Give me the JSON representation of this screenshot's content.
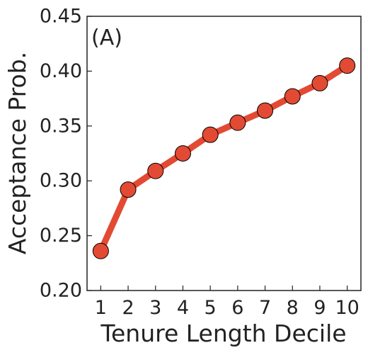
{
  "chart_data": {
    "type": "line",
    "panel_label": "(A)",
    "xlabel": "Tenure Length Decile",
    "ylabel": "Acceptance Prob.",
    "x": [
      1,
      2,
      3,
      4,
      5,
      6,
      7,
      8,
      9,
      10
    ],
    "y": [
      0.236,
      0.292,
      0.309,
      0.325,
      0.342,
      0.353,
      0.364,
      0.377,
      0.389,
      0.405
    ],
    "xticks": [
      "1",
      "2",
      "3",
      "4",
      "5",
      "6",
      "7",
      "8",
      "9",
      "10"
    ],
    "yticks": [
      "0.20",
      "0.25",
      "0.30",
      "0.35",
      "0.40",
      "0.45"
    ],
    "ylim": [
      0.2,
      0.45
    ],
    "xlim": [
      0.5,
      10.5
    ],
    "grid": false,
    "legend": "none",
    "colors": {
      "line": "#e34a33",
      "marker_fill": "#e34a33",
      "marker_edge": "#000000",
      "axis": "#222222"
    }
  }
}
